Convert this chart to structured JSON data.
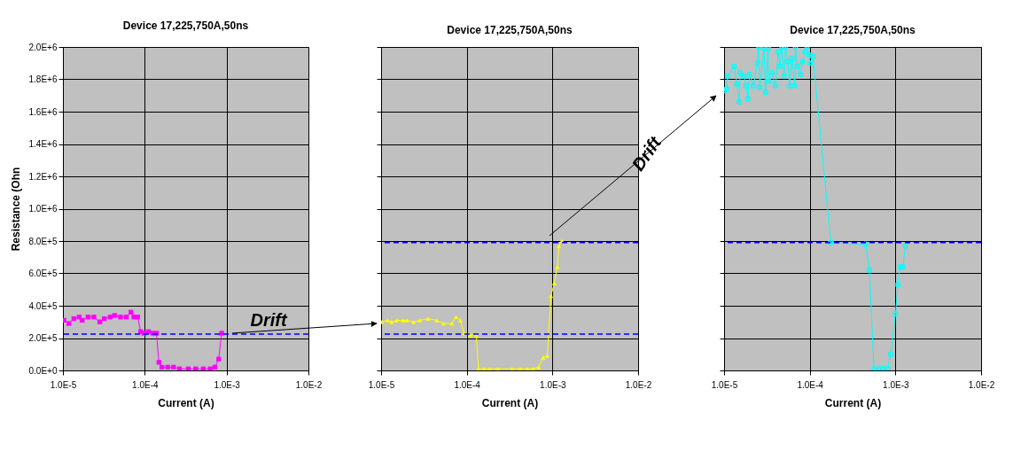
{
  "chart_data": [
    {
      "type": "line",
      "title": "Device 17,225,750A,50ns",
      "xlabel": "Current (A)",
      "ylabel": "Resistance (Ohn",
      "log": "x",
      "grid": true,
      "marker": "square",
      "line_style": "solid",
      "xlim": [
        1e-05,
        0.01
      ],
      "ylim": [
        0,
        2000000
      ],
      "xticks": [
        {
          "value": 1e-05,
          "label": "1.0E-5"
        },
        {
          "value": 0.0001,
          "label": "1.0E-4"
        },
        {
          "value": 0.001,
          "label": "1.0E-3"
        },
        {
          "value": 0.01,
          "label": "1.0E-2"
        }
      ],
      "yticks": [
        {
          "value": 0,
          "label": "0.0E+0"
        },
        {
          "value": 200000,
          "label": "2.0E+5"
        },
        {
          "value": 400000,
          "label": "4.0E+5"
        },
        {
          "value": 600000,
          "label": "6.0E+5"
        },
        {
          "value": 800000,
          "label": "8.0E+5"
        },
        {
          "value": 1000000,
          "label": "1.0E+6"
        },
        {
          "value": 1200000,
          "label": "1.2E+6"
        },
        {
          "value": 1400000,
          "label": "1.4E+6"
        },
        {
          "value": 1600000,
          "label": "1.6E+6"
        },
        {
          "value": 1800000,
          "label": "1.8E+6"
        },
        {
          "value": 2000000,
          "label": "2.0E+6"
        }
      ],
      "ref_lines": [
        {
          "axis": "y",
          "value": 225000,
          "color": "#0000ff",
          "line_style": "dashed"
        }
      ],
      "annotations": [
        "Drift"
      ],
      "series": [
        {
          "color": "#ff00ff",
          "x": [
            1.03e-05,
            1.18e-05,
            1.36e-05,
            1.58e-05,
            1.72e-05,
            2.03e-05,
            2.39e-05,
            2.82e-05,
            3.2e-05,
            3.78e-05,
            4.28e-05,
            5.05e-05,
            5.97e-05,
            6.77e-05,
            7.36e-05,
            8.2e-05,
            8.9e-05,
            9.8e-05,
            0.000111,
            0.000126,
            0.000139,
            0.000149,
            0.000162,
            0.000191,
            0.000225,
            0.000266,
            0.00034,
            0.00042,
            0.00052,
            0.00063,
            0.00072,
            0.0008,
            0.00087
          ],
          "values": [
            310000,
            290000,
            320000,
            330000,
            310000,
            330000,
            330000,
            300000,
            320000,
            330000,
            340000,
            330000,
            330000,
            360000,
            330000,
            330000,
            240000,
            230000,
            240000,
            230000,
            230000,
            50000,
            20000,
            20000,
            20000,
            10000,
            10000,
            10000,
            10000,
            10000,
            20000,
            70000,
            230000
          ]
        }
      ]
    },
    {
      "type": "line",
      "title": "Device 17,225,750A,50ns",
      "xlabel": "Current (A)",
      "log": "x",
      "grid": true,
      "marker": "triangle",
      "line_style": "solid",
      "tick_labels": "x",
      "xlim": [
        1e-05,
        0.01
      ],
      "ylim": [
        0,
        2000000
      ],
      "xticks": [
        {
          "value": 1e-05,
          "label": "1.0E-5"
        },
        {
          "value": 0.0001,
          "label": "1.0E-4"
        },
        {
          "value": 0.001,
          "label": "1.0E-3"
        },
        {
          "value": 0.01,
          "label": "1.0E-2"
        }
      ],
      "yticks": [
        0,
        200000,
        400000,
        600000,
        800000,
        1000000,
        1200000,
        1400000,
        1600000,
        1800000,
        2000000
      ],
      "ref_lines": [
        {
          "axis": "y",
          "value": 225000,
          "color": "#0000ff",
          "line_style": "dashed"
        },
        {
          "axis": "y",
          "value": 790000,
          "color": "#0000ff",
          "line_style": "dashed"
        }
      ],
      "annotations": [
        "Drift"
      ],
      "series": [
        {
          "color": "#ffff00",
          "x": [
            1.02e-05,
            1.19e-05,
            1.33e-05,
            1.52e-05,
            1.8e-05,
            2.01e-05,
            2.39e-05,
            2.83e-05,
            3.54e-05,
            4.44e-05,
            5.34e-05,
            6.7e-05,
            7.5e-05,
            8.4e-05,
            9.3e-05,
            0.000109,
            0.000129,
            0.000137,
            0.000159,
            0.000185,
            0.00023,
            0.000337,
            0.00042,
            0.00051,
            0.00059,
            0.00069,
            0.00078,
            0.00087,
            0.00096,
            0.00105,
            0.00114,
            0.00119,
            0.00129
          ],
          "values": [
            300000,
            310000,
            300000,
            310000,
            310000,
            310000,
            300000,
            310000,
            320000,
            310000,
            290000,
            290000,
            330000,
            310000,
            230000,
            220000,
            220000,
            10000,
            10000,
            10000,
            10000,
            10000,
            10000,
            10000,
            10000,
            20000,
            80000,
            90000,
            460000,
            540000,
            640000,
            770000,
            800000
          ]
        }
      ]
    },
    {
      "type": "line",
      "title": "Device 17,225,750A,50ns",
      "xlabel": "Current (A)",
      "log": "x",
      "grid": true,
      "marker": "cross",
      "line_style": "solid",
      "tick_labels": "x",
      "xlim": [
        1e-05,
        0.01
      ],
      "ylim": [
        0,
        2000000
      ],
      "xticks": [
        {
          "value": 1e-05,
          "label": "1.0E-5"
        },
        {
          "value": 0.0001,
          "label": "1.0E-4"
        },
        {
          "value": 0.001,
          "label": "1.0E-3"
        },
        {
          "value": 0.01,
          "label": "1.0E-2"
        }
      ],
      "yticks": [
        0,
        200000,
        400000,
        600000,
        800000,
        1000000,
        1200000,
        1400000,
        1600000,
        1800000,
        2000000
      ],
      "ref_lines": [
        {
          "axis": "y",
          "value": 790000,
          "color": "#0000ff",
          "line_style": "dashed"
        }
      ],
      "series": [
        {
          "color": "#00ffff",
          "x": [
            1e-05,
            1.07e-05,
            1.1e-05,
            1.31e-05,
            1.41e-05,
            1.5e-05,
            1.54e-05,
            1.71e-05,
            1.81e-05,
            1.9e-05,
            1.98e-05,
            2.2e-05,
            2.45e-05,
            2.54e-05,
            2.6e-05,
            2.93e-05,
            3.04e-05,
            3.26e-05,
            3.3e-05,
            3.63e-05,
            3.98e-05,
            4.29e-05,
            4.5e-05,
            4.74e-05,
            5.02e-05,
            5.21e-05,
            5.6e-05,
            5.8e-05,
            6.2e-05,
            6.7e-05,
            6.8e-05,
            7.2e-05,
            7.8e-05,
            8.2e-05,
            8.8e-05,
            9.3e-05,
            9.8e-05,
            0.000101,
            0.000109,
            0.000176,
            0.00045,
            0.000496,
            0.000563,
            0.00064,
            0.00072,
            0.00081,
            0.00088,
            0.001,
            0.00107,
            0.00113,
            0.00122,
            0.00131
          ],
          "values": [
            1730000,
            1740000,
            1820000,
            1880000,
            1770000,
            1660000,
            1840000,
            1820000,
            1760000,
            1680000,
            1830000,
            1760000,
            1900000,
            2000000,
            1750000,
            1990000,
            1720000,
            1990000,
            1790000,
            1840000,
            1760000,
            1970000,
            1880000,
            2000000,
            1820000,
            2000000,
            1910000,
            1760000,
            1930000,
            1760000,
            2000000,
            1880000,
            1830000,
            1910000,
            1970000,
            2000000,
            1950000,
            1900000,
            1940000,
            790000,
            780000,
            620000,
            10000,
            10000,
            10000,
            10000,
            100000,
            350000,
            530000,
            640000,
            640000,
            770000
          ]
        }
      ]
    }
  ]
}
